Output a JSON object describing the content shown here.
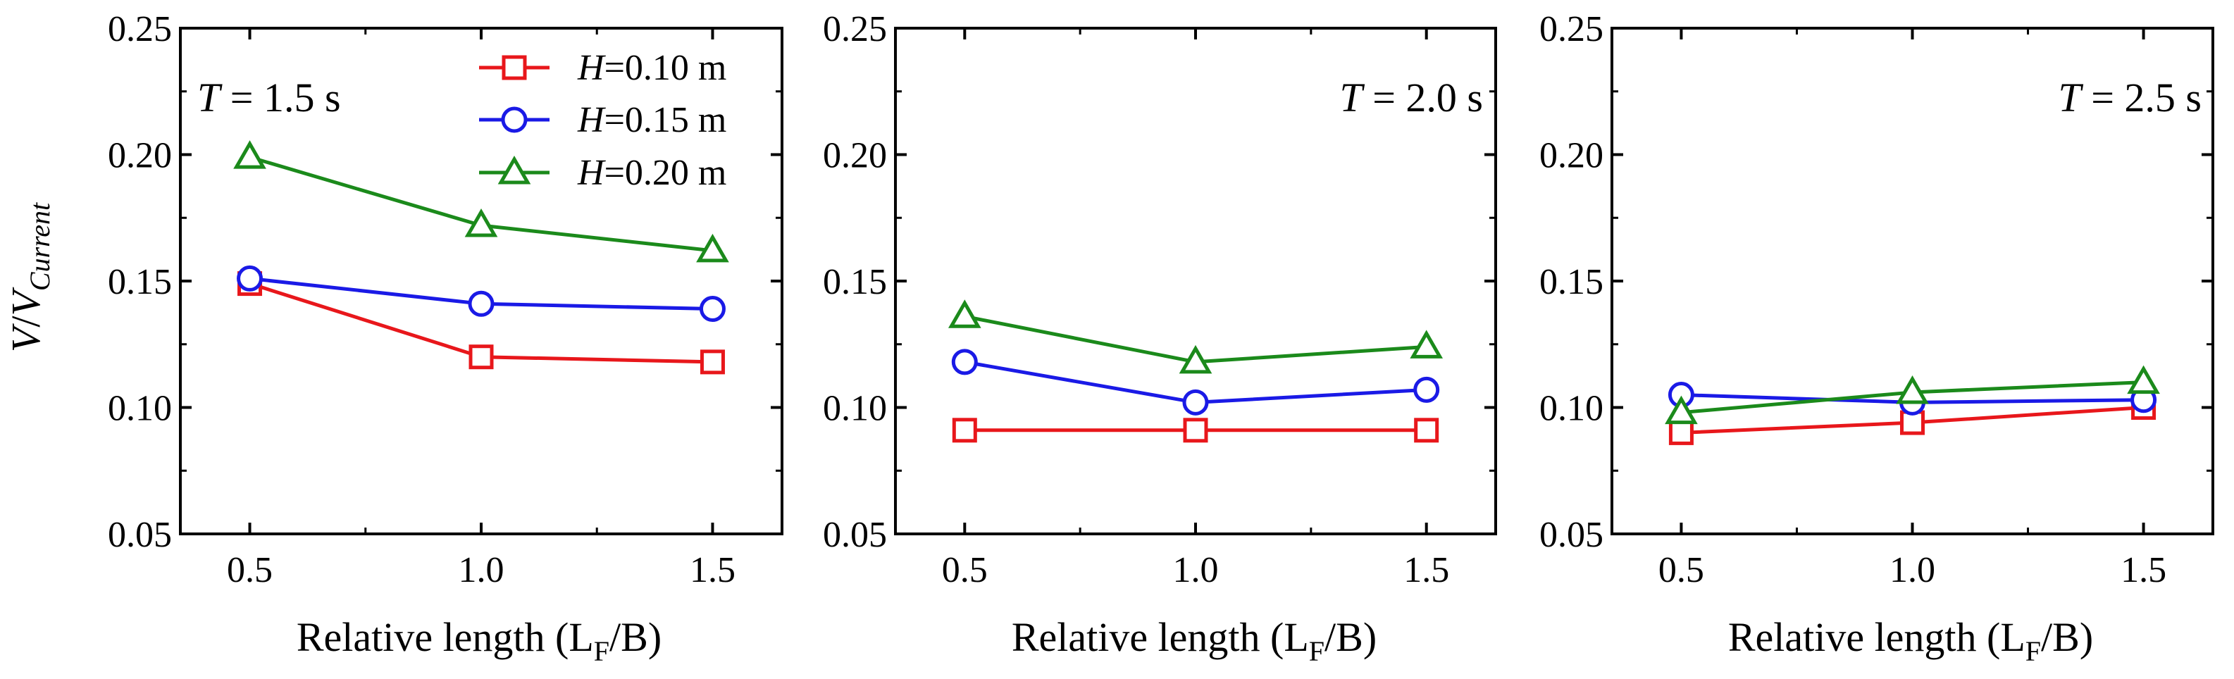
{
  "chart_data": [
    {
      "type": "line",
      "title": "",
      "annotation": {
        "var": "T",
        "rest": " = 1.5 s"
      },
      "xlabel": {
        "text": "Relative length (L",
        "sub": "F",
        "tail": "/B)"
      },
      "ylabel": {
        "var": "V",
        "slash": "/",
        "var2": "V",
        "sub": "Current"
      },
      "xlim": [
        0.35,
        1.65
      ],
      "ylim": [
        0.05,
        0.25
      ],
      "xticks": [
        "0.5",
        "1.0",
        "1.5"
      ],
      "yticks": [
        "0.05",
        "0.10",
        "0.15",
        "0.20",
        "0.25"
      ],
      "x": [
        0.5,
        1.0,
        1.5
      ],
      "legend_position": "top-right",
      "series": [
        {
          "name": "H=0.10 m",
          "label_var": "H",
          "label_rest": "=0.10 m",
          "color": "#e8171b",
          "marker": "square",
          "values": [
            0.149,
            0.12,
            0.118
          ]
        },
        {
          "name": "H=0.15 m",
          "label_var": "H",
          "label_rest": "=0.15 m",
          "color": "#1a1ae6",
          "marker": "circle",
          "values": [
            0.151,
            0.141,
            0.139
          ]
        },
        {
          "name": "H=0.20 m",
          "label_var": "H",
          "label_rest": "=0.20 m",
          "color": "#1b8a1b",
          "marker": "triangle",
          "values": [
            0.199,
            0.172,
            0.162
          ]
        }
      ]
    },
    {
      "type": "line",
      "title": "",
      "annotation": {
        "var": "T",
        "rest": " = 2.0 s"
      },
      "xlabel": {
        "text": "Relative length (L",
        "sub": "F",
        "tail": "/B)"
      },
      "xlim": [
        0.35,
        1.65
      ],
      "ylim": [
        0.05,
        0.25
      ],
      "xticks": [
        "0.5",
        "1.0",
        "1.5"
      ],
      "yticks": [
        "0.05",
        "0.10",
        "0.15",
        "0.20",
        "0.25"
      ],
      "x": [
        0.5,
        1.0,
        1.5
      ],
      "series": [
        {
          "name": "H=0.10 m",
          "color": "#e8171b",
          "marker": "square",
          "values": [
            0.091,
            0.091,
            0.091
          ]
        },
        {
          "name": "H=0.15 m",
          "color": "#1a1ae6",
          "marker": "circle",
          "values": [
            0.118,
            0.102,
            0.107
          ]
        },
        {
          "name": "H=0.20 m",
          "color": "#1b8a1b",
          "marker": "triangle",
          "values": [
            0.136,
            0.118,
            0.124
          ]
        }
      ]
    },
    {
      "type": "line",
      "title": "",
      "annotation": {
        "var": "T",
        "rest": " = 2.5 s"
      },
      "xlabel": {
        "text": "Relative length (L",
        "sub": "F",
        "tail": "/B)"
      },
      "xlim": [
        0.35,
        1.65
      ],
      "ylim": [
        0.05,
        0.25
      ],
      "xticks": [
        "0.5",
        "1.0",
        "1.5"
      ],
      "yticks": [
        "0.05",
        "0.10",
        "0.15",
        "0.20",
        "0.25"
      ],
      "x": [
        0.5,
        1.0,
        1.5
      ],
      "series": [
        {
          "name": "H=0.10 m",
          "color": "#e8171b",
          "marker": "square",
          "values": [
            0.09,
            0.094,
            0.1
          ]
        },
        {
          "name": "H=0.15 m",
          "color": "#1a1ae6",
          "marker": "circle",
          "values": [
            0.105,
            0.102,
            0.103
          ]
        },
        {
          "name": "H=0.20 m",
          "color": "#1b8a1b",
          "marker": "triangle",
          "values": [
            0.098,
            0.106,
            0.11
          ]
        }
      ]
    }
  ]
}
